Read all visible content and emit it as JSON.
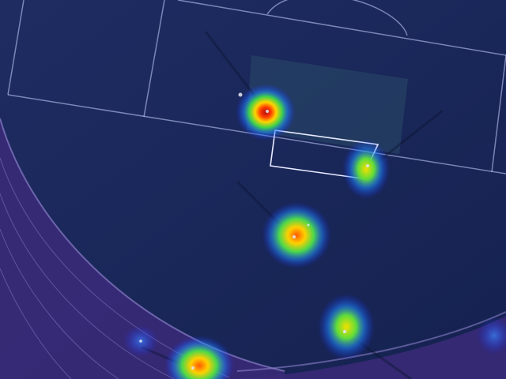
{
  "image": {
    "subject": "aerial-football-pitch-detection-heatmap",
    "colors": {
      "field": "#1b2a5c",
      "field_dark": "#14204a",
      "track": "#3a2a78",
      "track_lines": "#8a7fc9",
      "pitch_lines": "#c9d3ff",
      "goal": "#e8ecff",
      "penalty_area_fill": "#2a4a68"
    },
    "heat_spots": [
      {
        "name": "player-1",
        "intensity": 1.0
      },
      {
        "name": "player-2",
        "intensity": 0.75
      },
      {
        "name": "player-3",
        "intensity": 0.9
      },
      {
        "name": "player-4",
        "intensity": 0.7
      },
      {
        "name": "player-5",
        "intensity": 0.85
      },
      {
        "name": "player-6",
        "intensity": 0.25
      }
    ]
  }
}
